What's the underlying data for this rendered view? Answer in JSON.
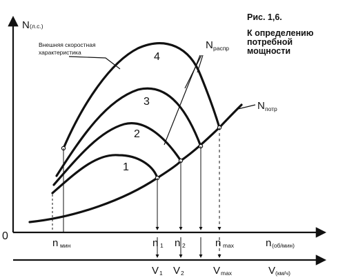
{
  "figure": {
    "caption_line1": "Рис. 1,6.",
    "caption_line2": "К определению",
    "caption_line3": "потребной",
    "caption_line4": "мощности"
  },
  "labels": {
    "n_axis_main": "N",
    "n_axis_sub": "(л.с.)",
    "outer_char_line1": "Внешняя скоростная",
    "outer_char_line2": "характеристика",
    "n_avail_main": "N",
    "n_avail_sub": "распр",
    "n_req_main": "N",
    "n_req_sub": "потр",
    "origin": "0"
  },
  "curves": {
    "c1": "1",
    "c2": "2",
    "c3": "3",
    "c4": "4"
  },
  "rpm_axis": {
    "n_min_main": "n",
    "n_min_sub": "мин",
    "n1_main": "n",
    "n1_sub": "1",
    "n2_main": "n",
    "n2_sub": "2",
    "nmax_main": "n",
    "nmax_sub": "max",
    "unit_main": "n",
    "unit_sub": "(об/мин)"
  },
  "speed_axis": {
    "v1_main": "V",
    "v1_sub": "1",
    "v2_main": "V",
    "v2_sub": "2",
    "vmax_main": "V",
    "vmax_sub": "max",
    "unit_main": "V",
    "unit_sub": "(км/ч)"
  }
}
